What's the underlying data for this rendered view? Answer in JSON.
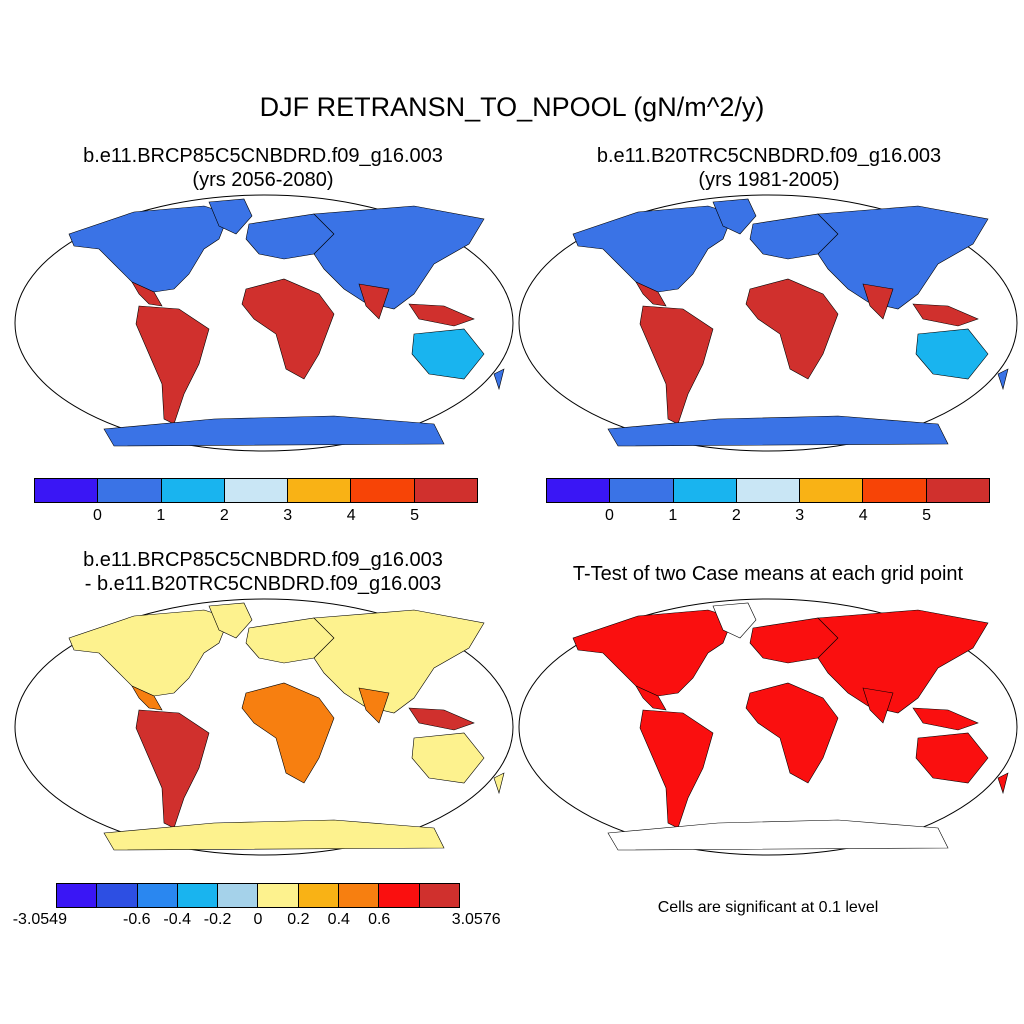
{
  "title": "DJF RETRANSN_TO_NPOOL (gN/m^2/y)",
  "panels": {
    "p1": {
      "line1": "b.e11.BRCP85C5CNBDRD.f09_g16.003",
      "line2": "(yrs 2056-2080)"
    },
    "p2": {
      "line1": "b.e11.B20TRC5CNBDRD.f09_g16.003",
      "line2": "(yrs 1981-2005)"
    },
    "p3": {
      "line1": "b.e11.BRCP85C5CNBDRD.f09_g16.003",
      "line2": "- b.e11.B20TRC5CNBDRD.f09_g16.003"
    },
    "p4": {
      "line1": "T-Test of two Case means at each grid point"
    }
  },
  "colorbars": {
    "cb1": {
      "colors": [
        "#3a16f5",
        "#3a73e6",
        "#19b4ef",
        "#c9e6f5",
        "#f9b215",
        "#f74406",
        "#d0302d"
      ],
      "labels": [
        "0",
        "1",
        "2",
        "3",
        "4",
        "5"
      ]
    },
    "cb2": {
      "colors": [
        "#3a16f5",
        "#3a73e6",
        "#19b4ef",
        "#c9e6f5",
        "#f9b215",
        "#f74406",
        "#d0302d"
      ],
      "labels": [
        "0",
        "1",
        "2",
        "3",
        "4",
        "5"
      ]
    },
    "cb3": {
      "colors": [
        "#3a16f5",
        "#2d4fe3",
        "#2a87f0",
        "#19b4ef",
        "#a5d2ea",
        "#fdf28e",
        "#f9b215",
        "#f77f10",
        "#fa0f0f",
        "#d0302d"
      ],
      "labels": [
        "-3.0549",
        "-0.6",
        "-0.4",
        "-0.2",
        "0",
        "0.2",
        "0.4",
        "0.6",
        "3.0576"
      ]
    }
  },
  "note": "Cells are significant at 0.1 level"
}
